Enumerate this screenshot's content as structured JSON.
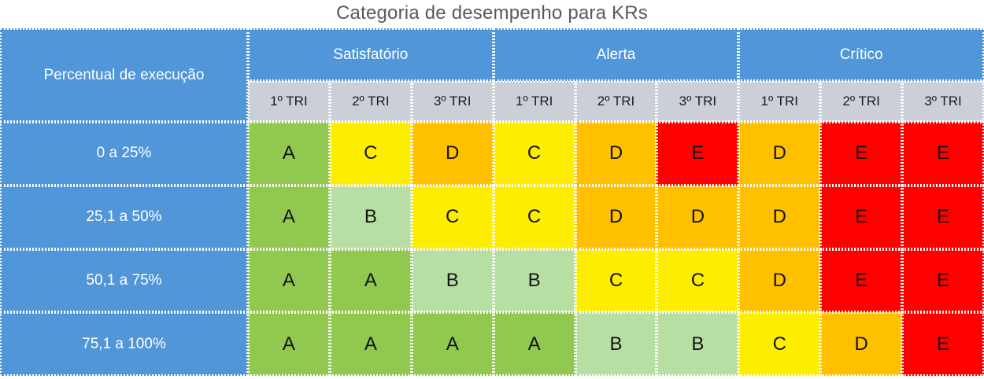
{
  "chart_data": {
    "type": "table",
    "title": "Categoria de desempenho para KRs",
    "row_axis_label": "Percentual de execução",
    "column_groups": [
      {
        "label": "Satisfatório",
        "columns": [
          "1º TRI",
          "2º TRI",
          "3º TRI"
        ]
      },
      {
        "label": "Alerta",
        "columns": [
          "1º TRI",
          "2º TRI",
          "3º TRI"
        ]
      },
      {
        "label": "Crítico",
        "columns": [
          "1º TRI",
          "2º TRI",
          "3º TRI"
        ]
      }
    ],
    "rows": [
      {
        "label": "0 a 25%",
        "grades": [
          "A",
          "C",
          "D",
          "C",
          "D",
          "E",
          "D",
          "E",
          "E"
        ],
        "colors": [
          "green",
          "yellow",
          "orange",
          "yellow",
          "orange",
          "red",
          "orange",
          "red",
          "red"
        ]
      },
      {
        "label": "25,1 a 50%",
        "grades": [
          "A",
          "B",
          "C",
          "C",
          "D",
          "D",
          "D",
          "E",
          "E"
        ],
        "colors": [
          "green",
          "light_green",
          "yellow",
          "yellow",
          "orange",
          "orange",
          "orange",
          "red",
          "red"
        ]
      },
      {
        "label": "50,1 a 75%",
        "grades": [
          "A",
          "A",
          "B",
          "B",
          "C",
          "C",
          "D",
          "E",
          "E"
        ],
        "colors": [
          "green",
          "green",
          "light_green",
          "light_green",
          "yellow",
          "yellow",
          "orange",
          "red",
          "red"
        ]
      },
      {
        "label": "75,1 a 100%",
        "grades": [
          "A",
          "A",
          "A",
          "A",
          "B",
          "B",
          "C",
          "D",
          "E"
        ],
        "colors": [
          "green",
          "green",
          "green",
          "green",
          "light_green",
          "light_green",
          "yellow",
          "orange",
          "red"
        ]
      }
    ],
    "palette": {
      "green": "#90C850",
      "light_green": "#B7DFA3",
      "yellow": "#FDEE00",
      "orange": "#FFC000",
      "red": "#FE0000"
    },
    "header_colors": {
      "header_blue": "#5096D9",
      "subheader_gray": "#CACFD8"
    },
    "title_color": "#595959",
    "grid_lines": "white dotted",
    "legend_position": "none"
  }
}
